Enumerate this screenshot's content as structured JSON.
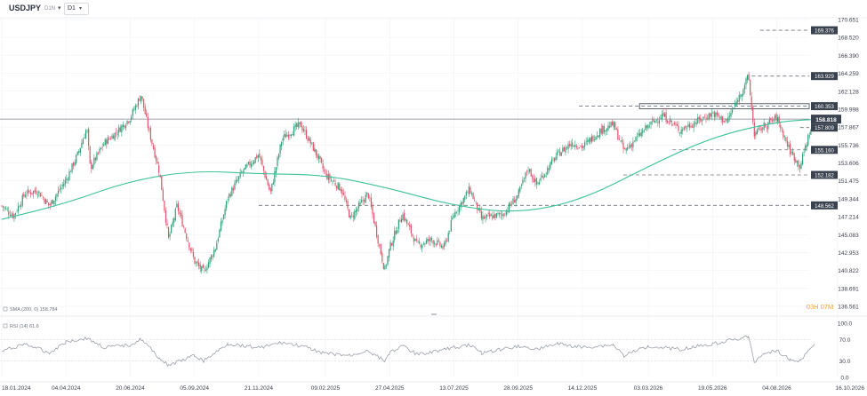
{
  "toolbar": {
    "symbol": "USDJPY",
    "symbol_sub": "D1N",
    "timeframe": "D1"
  },
  "colors": {
    "up": "#2e9e78",
    "down": "#e0536a",
    "sma": "#3ec29a",
    "rsi": "#9aa0a8",
    "price_tag_bg": "#3a4250",
    "level_tag_bg": "#3a4250",
    "countdown": "#f0a32a"
  },
  "chart_data": [
    {
      "type": "candlestick",
      "ylim": [
        136.561,
        170.651
      ],
      "y_ticks": [
        "170.651",
        "168.520",
        "166.390",
        "164.259",
        "162.128",
        "159.998",
        "157.867",
        "155.736",
        "153.606",
        "151.475",
        "149.344",
        "147.214",
        "145.083",
        "142.953",
        "140.822",
        "138.691",
        "136.561"
      ],
      "x_ticks": [
        "18.01.2024",
        "04.04.2024",
        "20.06.2024",
        "05.09.2024",
        "21.11.2024",
        "09.02.2025",
        "27.04.2025",
        "13.07.2025",
        "28.09.2025",
        "14.12.2025",
        "03.03.2026",
        "19.05.2026",
        "04.08.2026",
        "16.10.2026"
      ],
      "current_price": "158.818",
      "indicator_label": "SMA (200, 0) 158.784",
      "countdown": "03H 07M",
      "levels": [
        "169.376",
        "163.929",
        "160.353",
        "157.809",
        "155.160",
        "152.182",
        "148.562"
      ],
      "close_path": [
        [
          "18.01.2024",
          148.5
        ],
        [
          "01.02.2024",
          147.3
        ],
        [
          "15.02.2024",
          150.0
        ],
        [
          "01.03.2024",
          150.3
        ],
        [
          "15.03.2024",
          148.5
        ],
        [
          "04.04.2024",
          151.6
        ],
        [
          "18.04.2024",
          154.6
        ],
        [
          "29.04.2024",
          157.8
        ],
        [
          "03.05.2024",
          153.0
        ],
        [
          "20.05.2024",
          156.0
        ],
        [
          "03.06.2024",
          157.2
        ],
        [
          "20.06.2024",
          159.0
        ],
        [
          "03.07.2024",
          161.7
        ],
        [
          "11.07.2024",
          158.0
        ],
        [
          "25.07.2024",
          152.5
        ],
        [
          "05.08.2024",
          144.5
        ],
        [
          "15.08.2024",
          148.5
        ],
        [
          "05.09.2024",
          141.9
        ],
        [
          "16.09.2024",
          140.6
        ],
        [
          "30.09.2024",
          143.5
        ],
        [
          "15.10.2024",
          149.5
        ],
        [
          "01.11.2024",
          152.5
        ],
        [
          "21.11.2024",
          154.6
        ],
        [
          "05.12.2024",
          150.0
        ],
        [
          "19.12.2024",
          156.5
        ],
        [
          "10.01.2025",
          158.2
        ],
        [
          "30.01.2025",
          154.5
        ],
        [
          "09.02.2025",
          152.2
        ],
        [
          "28.02.2025",
          150.5
        ],
        [
          "11.03.2025",
          147.0
        ],
        [
          "01.04.2025",
          150.0
        ],
        [
          "21.04.2025",
          140.8
        ],
        [
          "27.04.2025",
          143.5
        ],
        [
          "12.05.2025",
          147.6
        ],
        [
          "30.05.2025",
          143.8
        ],
        [
          "16.06.2025",
          144.5
        ],
        [
          "01.07.2025",
          143.5
        ],
        [
          "13.07.2025",
          147.5
        ],
        [
          "01.08.2025",
          150.5
        ],
        [
          "15.08.2025",
          147.0
        ],
        [
          "10.09.2025",
          147.5
        ],
        [
          "28.09.2025",
          149.8
        ],
        [
          "10.10.2025",
          153.0
        ],
        [
          "20.10.2025",
          151.0
        ],
        [
          "14.11.2025",
          154.6
        ],
        [
          "01.12.2025",
          156.0
        ],
        [
          "14.12.2025",
          155.5
        ],
        [
          "05.01.2026",
          157.5
        ],
        [
          "20.01.2026",
          158.2
        ],
        [
          "02.02.2026",
          155.0
        ],
        [
          "03.03.2026",
          158.0
        ],
        [
          "20.03.2026",
          159.3
        ],
        [
          "10.04.2026",
          157.5
        ],
        [
          "19.05.2026",
          159.5
        ],
        [
          "05.06.2026",
          158.5
        ],
        [
          "20.06.2026",
          161.5
        ],
        [
          "01.07.2026",
          163.9
        ],
        [
          "08.07.2026",
          157.0
        ],
        [
          "20.07.2026",
          158.0
        ],
        [
          "04.08.2026",
          159.0
        ],
        [
          "20.08.2026",
          155.0
        ],
        [
          "01.09.2026",
          153.2
        ],
        [
          "10.09.2026",
          156.5
        ],
        [
          "18.09.2026",
          158.8
        ]
      ],
      "sma": [
        [
          "18.01.2024",
          146.9
        ],
        [
          "04.04.2024",
          148.8
        ],
        [
          "20.06.2024",
          151.5
        ],
        [
          "05.09.2024",
          152.7
        ],
        [
          "21.11.2024",
          152.3
        ],
        [
          "09.02.2025",
          152.2
        ],
        [
          "27.04.2025",
          150.6
        ],
        [
          "13.07.2025",
          148.5
        ],
        [
          "28.09.2025",
          147.6
        ],
        [
          "14.12.2025",
          149.2
        ],
        [
          "03.03.2026",
          153.2
        ],
        [
          "19.05.2026",
          156.7
        ],
        [
          "04.08.2026",
          158.5
        ],
        [
          "18.09.2026",
          158.78
        ]
      ]
    },
    {
      "type": "line",
      "indicator_label": "RSI (14) 61.6",
      "ylim": [
        0,
        100
      ],
      "y_ticks": [
        "100.0",
        "70.0",
        "30.0",
        "0.0"
      ],
      "series": [
        {
          "values": [
            [
              "18.01.2024",
              48
            ],
            [
              "15.02.2024",
              62
            ],
            [
              "15.03.2024",
              45
            ],
            [
              "04.04.2024",
              66
            ],
            [
              "29.04.2024",
              72
            ],
            [
              "20.05.2024",
              55
            ],
            [
              "20.06.2024",
              60
            ],
            [
              "03.07.2024",
              71
            ],
            [
              "25.07.2024",
              35
            ],
            [
              "05.08.2024",
              22
            ],
            [
              "05.09.2024",
              40
            ],
            [
              "16.09.2024",
              30
            ],
            [
              "15.10.2024",
              62
            ],
            [
              "21.11.2024",
              55
            ],
            [
              "19.12.2024",
              64
            ],
            [
              "10.01.2025",
              58
            ],
            [
              "09.02.2025",
              44
            ],
            [
              "11.03.2025",
              40
            ],
            [
              "01.04.2025",
              50
            ],
            [
              "21.04.2025",
              30
            ],
            [
              "27.04.2025",
              46
            ],
            [
              "12.05.2025",
              58
            ],
            [
              "30.05.2025",
              42
            ],
            [
              "13.07.2025",
              55
            ],
            [
              "01.08.2025",
              60
            ],
            [
              "15.08.2025",
              45
            ],
            [
              "28.09.2025",
              58
            ],
            [
              "20.10.2025",
              52
            ],
            [
              "14.11.2025",
              62
            ],
            [
              "14.12.2025",
              55
            ],
            [
              "20.01.2026",
              60
            ],
            [
              "02.02.2026",
              40
            ],
            [
              "03.03.2026",
              58
            ],
            [
              "10.04.2026",
              52
            ],
            [
              "19.05.2026",
              62
            ],
            [
              "01.07.2026",
              75
            ],
            [
              "08.07.2026",
              28
            ],
            [
              "20.07.2026",
              45
            ],
            [
              "04.08.2026",
              50
            ],
            [
              "20.08.2026",
              32
            ],
            [
              "01.09.2026",
              30
            ],
            [
              "18.09.2026",
              61.6
            ]
          ]
        }
      ]
    }
  ]
}
